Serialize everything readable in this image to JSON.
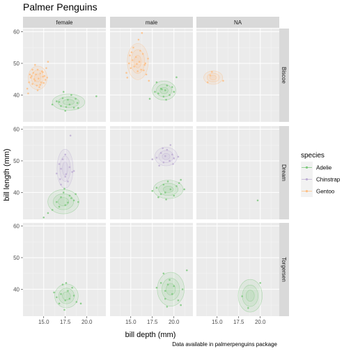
{
  "chart_data": {
    "type": "scatter",
    "title": "Palmer Penguins",
    "caption": "Data available in palmerpenguins package",
    "xlabel": "bill depth (mm)",
    "ylabel": "bill length (mm)",
    "xlim": [
      12.6,
      22.2
    ],
    "ylim": [
      31.5,
      61
    ],
    "x_ticks": [
      15.0,
      17.5,
      20.0
    ],
    "y_ticks": [
      40,
      50,
      60
    ],
    "facet_cols": [
      "female",
      "male",
      "NA"
    ],
    "facet_rows": [
      "Biscoe",
      "Dream",
      "Torgersen"
    ],
    "legend": {
      "title": "species",
      "position": "right",
      "entries": [
        {
          "label": "Adelie",
          "color": "#7fc97f"
        },
        {
          "label": "Chinstrap",
          "color": "#beaed4"
        },
        {
          "label": "Gentoo",
          "color": "#fdc086"
        }
      ]
    },
    "grid": true,
    "panels": [
      {
        "row": "Biscoe",
        "col": "female",
        "series": [
          {
            "species": "Gentoo",
            "points": [
              [
                13.1,
                42.0
              ],
              [
                13.3,
                44.0
              ],
              [
                13.5,
                45.5
              ],
              [
                13.6,
                46.0
              ],
              [
                13.7,
                43.5
              ],
              [
                13.8,
                47.0
              ],
              [
                13.9,
                45.0
              ],
              [
                14.0,
                44.5
              ],
              [
                14.1,
                46.5
              ],
              [
                14.2,
                43.0
              ],
              [
                14.3,
                48.0
              ],
              [
                14.4,
                45.2
              ],
              [
                14.5,
                42.5
              ],
              [
                14.6,
                46.8
              ],
              [
                14.7,
                44.0
              ],
              [
                14.8,
                47.5
              ],
              [
                14.9,
                45.8
              ],
              [
                15.0,
                43.8
              ],
              [
                15.1,
                46.0
              ],
              [
                15.2,
                44.8
              ],
              [
                15.3,
                48.5
              ],
              [
                15.4,
                45.5
              ],
              [
                13.2,
                40.5
              ],
              [
                13.4,
                46.5
              ],
              [
                14.0,
                49.5
              ],
              [
                15.5,
                50.5
              ],
              [
                14.3,
                41.5
              ],
              [
                13.7,
                48.0
              ],
              [
                14.6,
                43.2
              ],
              [
                14.9,
                47.2
              ]
            ]
          },
          {
            "species": "Adelie",
            "points": [
              [
                16.0,
                37.0
              ],
              [
                16.5,
                38.0
              ],
              [
                17.0,
                36.5
              ],
              [
                17.2,
                39.0
              ],
              [
                17.5,
                35.0
              ],
              [
                17.8,
                38.5
              ],
              [
                18.0,
                37.0
              ],
              [
                18.2,
                40.0
              ],
              [
                18.5,
                36.0
              ],
              [
                18.7,
                38.8
              ],
              [
                19.0,
                35.9
              ],
              [
                17.3,
                41.0
              ],
              [
                16.8,
                37.8
              ],
              [
                18.9,
                37.5
              ],
              [
                17.6,
                36.2
              ],
              [
                21.1,
                39.6
              ]
            ]
          }
        ]
      },
      {
        "row": "Biscoe",
        "col": "male",
        "series": [
          {
            "species": "Gentoo",
            "points": [
              [
                14.5,
                47.0
              ],
              [
                14.8,
                50.0
              ],
              [
                15.0,
                48.5
              ],
              [
                15.2,
                51.0
              ],
              [
                15.4,
                49.0
              ],
              [
                15.6,
                52.0
              ],
              [
                15.8,
                47.5
              ],
              [
                16.0,
                50.5
              ],
              [
                16.2,
                48.0
              ],
              [
                16.4,
                53.0
              ],
              [
                16.6,
                49.5
              ],
              [
                16.8,
                46.5
              ],
              [
                17.0,
                51.5
              ],
              [
                15.3,
                55.0
              ],
              [
                15.9,
                57.5
              ],
              [
                16.1,
                54.0
              ],
              [
                14.9,
                52.5
              ],
              [
                16.7,
                50.0
              ],
              [
                17.1,
                44.5
              ],
              [
                14.6,
                45.5
              ],
              [
                16.3,
                59.6
              ],
              [
                15.7,
                49.8
              ],
              [
                16.5,
                47.8
              ],
              [
                15.1,
                53.5
              ]
            ]
          },
          {
            "species": "Adelie",
            "points": [
              [
                17.8,
                41.0
              ],
              [
                18.2,
                40.5
              ],
              [
                18.5,
                42.0
              ],
              [
                18.8,
                39.5
              ],
              [
                19.0,
                41.5
              ],
              [
                19.2,
                43.0
              ],
              [
                19.5,
                40.0
              ],
              [
                19.8,
                42.5
              ],
              [
                20.0,
                41.0
              ],
              [
                18.0,
                44.0
              ],
              [
                19.1,
                38.5
              ],
              [
                20.3,
                45.6
              ],
              [
                17.2,
                38.8
              ],
              [
                18.6,
                41.8
              ]
            ]
          }
        ]
      },
      {
        "row": "Biscoe",
        "col": "NA",
        "series": [
          {
            "species": "Gentoo",
            "points": [
              [
                14.2,
                46.2
              ],
              [
                14.4,
                47.3
              ],
              [
                15.7,
                44.5
              ],
              [
                13.9,
                44.0
              ]
            ]
          }
        ]
      },
      {
        "row": "Dream",
        "col": "female",
        "series": [
          {
            "species": "Chinstrap",
            "points": [
              [
                16.5,
                46.0
              ],
              [
                17.0,
                47.5
              ],
              [
                17.5,
                45.0
              ],
              [
                18.0,
                48.0
              ],
              [
                17.2,
                50.5
              ],
              [
                17.8,
                43.5
              ],
              [
                18.3,
                46.5
              ],
              [
                16.8,
                49.0
              ],
              [
                17.5,
                52.0
              ],
              [
                18.1,
                58.0
              ],
              [
                17.0,
                42.5
              ],
              [
                17.6,
                45.8
              ],
              [
                18.5,
                46.8
              ],
              [
                16.9,
                44.2
              ]
            ]
          },
          {
            "species": "Adelie",
            "points": [
              [
                16.5,
                37.0
              ],
              [
                17.0,
                38.5
              ],
              [
                17.5,
                36.0
              ],
              [
                18.0,
                39.0
              ],
              [
                18.5,
                37.5
              ],
              [
                16.8,
                35.5
              ],
              [
                17.3,
                40.0
              ],
              [
                17.8,
                36.8
              ],
              [
                18.2,
                38.2
              ],
              [
                19.0,
                37.0
              ],
              [
                15.5,
                33.5
              ],
              [
                16.0,
                34.5
              ],
              [
                17.4,
                41.2
              ],
              [
                18.7,
                39.5
              ],
              [
                15.0,
                32.1
              ]
            ]
          }
        ]
      },
      {
        "row": "Dream",
        "col": "male",
        "series": [
          {
            "species": "Chinstrap",
            "points": [
              [
                17.5,
                50.5
              ],
              [
                18.0,
                51.0
              ],
              [
                18.5,
                52.5
              ],
              [
                18.8,
                49.5
              ],
              [
                19.0,
                51.5
              ],
              [
                19.2,
                53.5
              ],
              [
                19.5,
                50.0
              ],
              [
                19.8,
                52.0
              ],
              [
                20.0,
                50.8
              ],
              [
                18.3,
                48.5
              ],
              [
                19.6,
                55.0
              ],
              [
                20.5,
                51.3
              ],
              [
                18.7,
                54.0
              ],
              [
                19.9,
                49.0
              ]
            ]
          },
          {
            "species": "Adelie",
            "points": [
              [
                17.5,
                40.5
              ],
              [
                18.0,
                41.5
              ],
              [
                18.5,
                39.5
              ],
              [
                18.8,
                42.5
              ],
              [
                19.0,
                40.0
              ],
              [
                19.3,
                43.5
              ],
              [
                19.6,
                41.0
              ],
              [
                20.0,
                39.0
              ],
              [
                20.3,
                42.0
              ],
              [
                18.2,
                38.5
              ],
              [
                20.6,
                43.0
              ],
              [
                19.1,
                37.8
              ],
              [
                20.8,
                44.0
              ],
              [
                21.2,
                41.0
              ]
            ]
          }
        ]
      },
      {
        "row": "Dream",
        "col": "NA",
        "series": [
          {
            "species": "Adelie",
            "points": [
              [
                19.7,
                37.5
              ]
            ]
          }
        ]
      },
      {
        "row": "Torgersen",
        "col": "female",
        "series": [
          {
            "species": "Adelie",
            "points": [
              [
                16.5,
                37.5
              ],
              [
                17.0,
                38.5
              ],
              [
                17.5,
                36.5
              ],
              [
                17.8,
                39.5
              ],
              [
                18.0,
                37.0
              ],
              [
                18.3,
                40.5
              ],
              [
                17.2,
                41.5
              ],
              [
                16.8,
                35.5
              ],
              [
                18.5,
                38.0
              ],
              [
                17.6,
                42.0
              ],
              [
                16.2,
                39.0
              ],
              [
                18.8,
                36.0
              ],
              [
                19.3,
                35.5
              ],
              [
                17.4,
                33.5
              ]
            ]
          }
        ]
      },
      {
        "row": "Torgersen",
        "col": "male",
        "series": [
          {
            "species": "Adelie",
            "points": [
              [
                18.0,
                40.5
              ],
              [
                18.5,
                42.0
              ],
              [
                19.0,
                39.5
              ],
              [
                19.3,
                41.5
              ],
              [
                19.5,
                43.0
              ],
              [
                19.8,
                38.5
              ],
              [
                18.8,
                45.0
              ],
              [
                19.0,
                37.0
              ],
              [
                20.0,
                41.0
              ],
              [
                20.5,
                36.5
              ],
              [
                19.2,
                34.5
              ],
              [
                21.0,
                40.0
              ],
              [
                21.5,
                46.0
              ],
              [
                20.8,
                35.0
              ]
            ]
          }
        ]
      },
      {
        "row": "Torgersen",
        "col": "NA",
        "series": [
          {
            "species": "Adelie",
            "points": [
              [
                17.9,
                37.8
              ],
              [
                18.6,
                34.1
              ],
              [
                20.0,
                42.0
              ]
            ]
          }
        ]
      }
    ]
  }
}
